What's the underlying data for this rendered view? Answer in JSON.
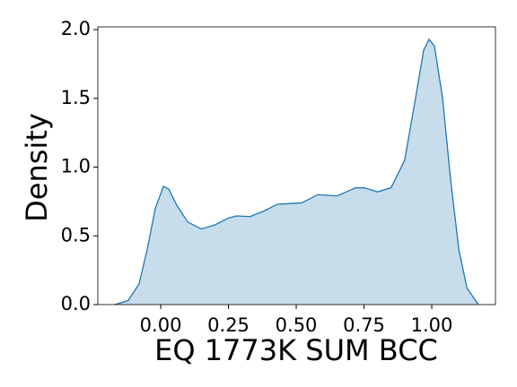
{
  "chart_data": {
    "type": "kde",
    "xlabel": "EQ 1773K SUM BCC",
    "ylabel": "Density",
    "color": "#1f77b4",
    "x": [
      -0.169,
      -0.12,
      -0.08,
      -0.05,
      -0.02,
      0.01,
      0.03,
      0.06,
      0.1,
      0.15,
      0.2,
      0.25,
      0.28,
      0.33,
      0.38,
      0.43,
      0.48,
      0.52,
      0.58,
      0.65,
      0.72,
      0.75,
      0.8,
      0.85,
      0.9,
      0.94,
      0.97,
      0.99,
      1.01,
      1.04,
      1.07,
      1.1,
      1.13,
      1.172
    ],
    "values": [
      0,
      0.03,
      0.15,
      0.4,
      0.7,
      0.86,
      0.84,
      0.72,
      0.6,
      0.55,
      0.58,
      0.63,
      0.645,
      0.64,
      0.68,
      0.73,
      0.735,
      0.74,
      0.8,
      0.79,
      0.85,
      0.85,
      0.82,
      0.85,
      1.05,
      1.5,
      1.85,
      1.93,
      1.88,
      1.5,
      0.9,
      0.4,
      0.12,
      0
    ],
    "xlim": [
      -0.232,
      1.235
    ],
    "ylim": [
      0,
      2.02
    ],
    "xticks": [
      {
        "value": 0,
        "label": "0.00"
      },
      {
        "value": 0.25,
        "label": "0.25"
      },
      {
        "value": 0.5,
        "label": "0.50"
      },
      {
        "value": 0.75,
        "label": "0.75"
      },
      {
        "value": 1,
        "label": "1.00"
      }
    ],
    "yticks": [
      {
        "value": 0,
        "label": "0.0"
      },
      {
        "value": 0.5,
        "label": "0.5"
      },
      {
        "value": 1,
        "label": "1.0"
      },
      {
        "value": 1.5,
        "label": "1.5"
      },
      {
        "value": 2,
        "label": "2.0"
      }
    ]
  }
}
